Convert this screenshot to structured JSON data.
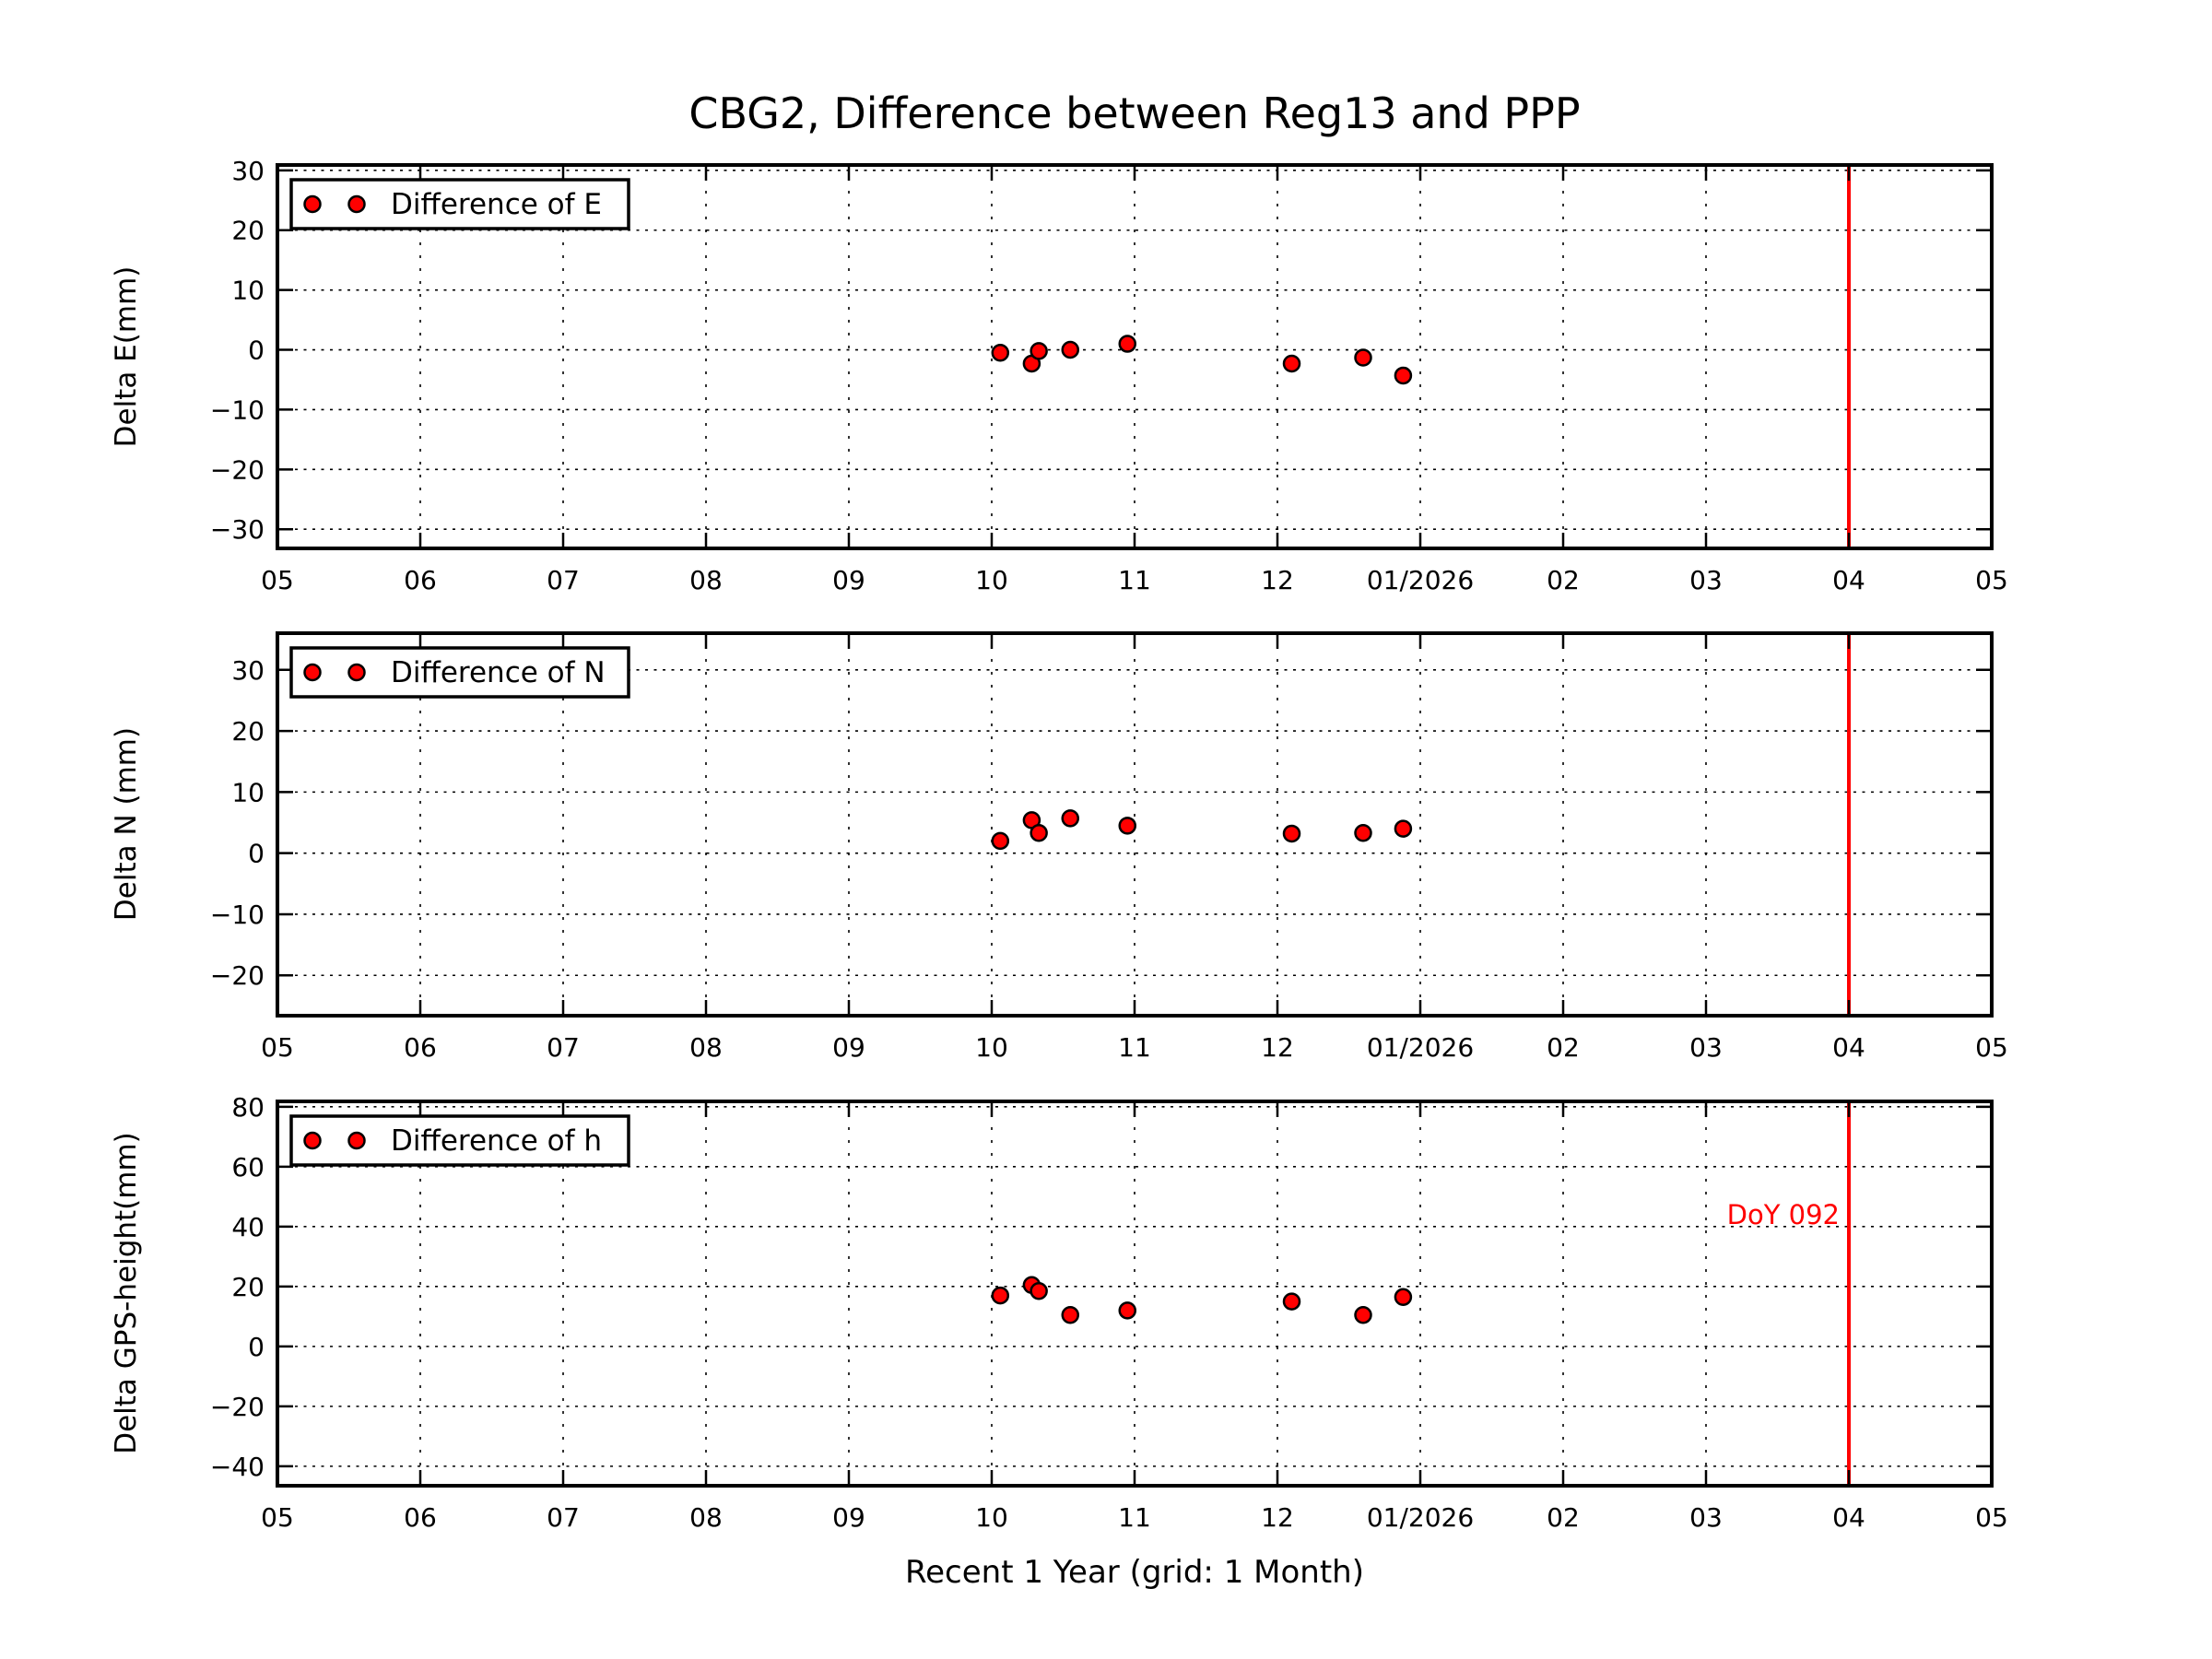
{
  "title": "CBG2, Difference between Reg13 and PPP",
  "xlabel": "Recent 1 Year (grid: 1 Month)",
  "colors": {
    "marker_fill": "#ff0000",
    "marker_edge": "#000000",
    "vline": "#ff0000",
    "annotation": "#ff0000",
    "axis": "#000000",
    "background": "#ffffff"
  },
  "x_axis": {
    "tick_labels": [
      "05",
      "06",
      "07",
      "08",
      "09",
      "10",
      "11",
      "12",
      "01/2026",
      "02",
      "03",
      "04",
      "05"
    ],
    "range_months": [
      5,
      17
    ],
    "grid": "1 Month",
    "vline_month": 16
  },
  "chart_data": [
    {
      "type": "scatter",
      "ylabel": "Delta E(mm)",
      "legend": "Difference of E",
      "ylim": [
        -33.2,
        30.9
      ],
      "yticks": [
        30,
        20,
        10,
        0,
        -10,
        -20,
        -30
      ],
      "x": [
        10.06,
        10.28,
        10.33,
        10.55,
        10.95,
        12.1,
        12.6,
        12.88
      ],
      "y": [
        -0.5,
        -2.3,
        -0.2,
        0.0,
        1.0,
        -2.3,
        -1.3,
        -4.3
      ]
    },
    {
      "type": "scatter",
      "ylabel": "Delta N (mm)",
      "legend": "Difference of N",
      "ylim": [
        -26.6,
        36.0
      ],
      "yticks": [
        30,
        20,
        10,
        0,
        -10,
        -20
      ],
      "x": [
        10.06,
        10.28,
        10.33,
        10.55,
        10.95,
        12.1,
        12.6,
        12.88
      ],
      "y": [
        2.0,
        5.4,
        3.3,
        5.7,
        4.5,
        3.2,
        3.3,
        4.0
      ]
    },
    {
      "type": "scatter",
      "ylabel": "Delta GPS-height(mm)",
      "legend": "Difference of h",
      "ylim": [
        -46.5,
        81.8
      ],
      "yticks": [
        80,
        60,
        40,
        20,
        0,
        -20,
        -40
      ],
      "x": [
        10.06,
        10.28,
        10.33,
        10.55,
        10.95,
        12.1,
        12.6,
        12.88
      ],
      "y": [
        17.0,
        20.5,
        18.5,
        10.5,
        12.0,
        15.0,
        10.5,
        16.5
      ],
      "annotation": {
        "text": "DoY 092",
        "y_value": 44
      }
    }
  ]
}
